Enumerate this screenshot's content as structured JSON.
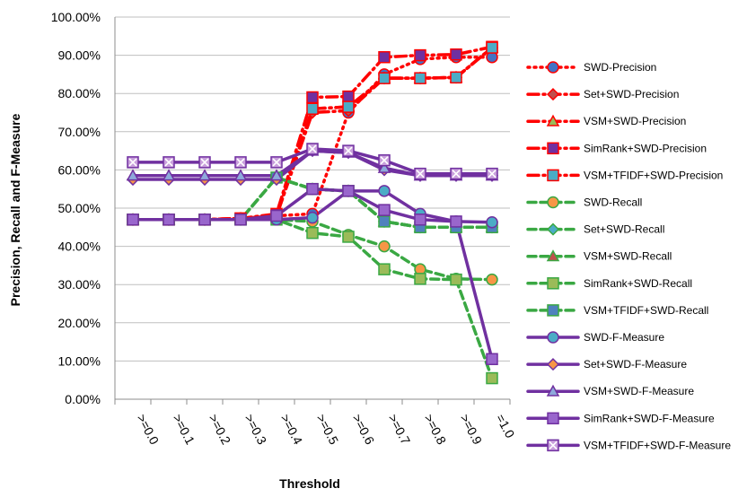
{
  "chart_data": {
    "type": "line",
    "title": "",
    "xlabel": "Threshold",
    "ylabel": "Precision, Recall and F-Measure",
    "categories": [
      ">=0.0",
      ">=0.1",
      ">=0.2",
      ">=0.3",
      ">=0.4",
      ">=0.5",
      ">=0.6",
      ">=0.7",
      ">=0.8",
      ">=0.9",
      "=1.0"
    ],
    "ylim": [
      0,
      100
    ],
    "yticks": [
      "0.00%",
      "10.00%",
      "20.00%",
      "30.00%",
      "40.00%",
      "50.00%",
      "60.00%",
      "70.00%",
      "80.00%",
      "90.00%",
      "100.00%"
    ],
    "grid": "horizontal",
    "legend_position": "right",
    "series": [
      {
        "name": "SWD-Precision",
        "color": "#ff0000",
        "dash": "dot",
        "marker": "circle",
        "marker_fill": "#4472c4",
        "values": [
          47,
          47,
          47,
          47.3,
          48,
          48.5,
          75,
          85,
          89,
          89.5,
          89.5
        ]
      },
      {
        "name": "Set+SWD-Precision",
        "color": "#ff0000",
        "dash": "dashdot",
        "marker": "diamond",
        "marker_fill": "#c0504d",
        "values": [
          47,
          47,
          47,
          47.3,
          48,
          75,
          75.5,
          84,
          84,
          84.2,
          92
        ]
      },
      {
        "name": "VSM+SWD-Precision",
        "color": "#ff0000",
        "dash": "dashdot",
        "marker": "triangle",
        "marker_fill": "#9bbb59",
        "values": [
          47,
          47,
          47,
          47.3,
          48,
          76,
          76.5,
          84,
          84,
          84.2,
          92
        ]
      },
      {
        "name": "SimRank+SWD-Precision",
        "color": "#ff0000",
        "dash": "dashdot",
        "marker": "square",
        "marker_fill": "#7030a0",
        "values": [
          47,
          47,
          47,
          47.3,
          48.5,
          79,
          79.2,
          89.5,
          90,
          90.2,
          92.2
        ]
      },
      {
        "name": "VSM+TFIDF+SWD-Precision",
        "color": "#ff0000",
        "dash": "dashdot",
        "marker": "square",
        "marker_fill": "#4bacc6",
        "values": [
          47,
          47,
          47,
          47.3,
          48,
          76,
          76.5,
          84,
          84,
          84.2,
          92
        ]
      },
      {
        "name": "SWD-Recall",
        "color": "#3aa843",
        "dash": "dash",
        "marker": "circle",
        "marker_fill": "#f79646",
        "values": [
          47,
          47,
          47,
          47,
          47,
          46.5,
          43,
          40,
          34,
          31.5,
          31.3
        ]
      },
      {
        "name": "Set+SWD-Recall",
        "color": "#3aa843",
        "dash": "dash",
        "marker": "diamond",
        "marker_fill": "#4bacc6",
        "values": [
          47,
          47,
          47,
          47,
          58,
          55,
          54.5,
          46.5,
          45,
          45,
          45
        ]
      },
      {
        "name": "VSM+SWD-Recall",
        "color": "#3aa843",
        "dash": "dash",
        "marker": "triangle",
        "marker_fill": "#c0504d",
        "values": [
          47,
          47,
          47,
          47,
          58,
          55,
          54.5,
          46.5,
          45,
          45,
          45
        ]
      },
      {
        "name": "SimRank+SWD-Recall",
        "color": "#3aa843",
        "dash": "dash",
        "marker": "square",
        "marker_fill": "#9bbb59",
        "values": [
          47,
          47,
          47,
          47,
          47,
          43.5,
          42.5,
          34,
          31.5,
          31.3,
          5.5
        ]
      },
      {
        "name": "VSM+TFIDF+SWD-Recall",
        "color": "#3aa843",
        "dash": "dash",
        "marker": "square",
        "marker_fill": "#4f81bd",
        "values": [
          47,
          47,
          47,
          47,
          58,
          55,
          54.5,
          46.5,
          45,
          45,
          45
        ]
      },
      {
        "name": "SWD-F-Measure",
        "color": "#7030a0",
        "dash": "solid",
        "marker": "circle",
        "marker_fill": "#4bacc6",
        "values": [
          47,
          47,
          47,
          47,
          47,
          47.5,
          54.5,
          54.5,
          48.5,
          46.5,
          46.3
        ]
      },
      {
        "name": "Set+SWD-F-Measure",
        "color": "#7030a0",
        "dash": "solid",
        "marker": "diamond",
        "marker_fill": "#f79646",
        "values": [
          57.5,
          57.5,
          57.5,
          57.5,
          57.5,
          65,
          64.5,
          60,
          58.5,
          58.5,
          58.5
        ]
      },
      {
        "name": "VSM+SWD-F-Measure",
        "color": "#7030a0",
        "dash": "solid",
        "marker": "triangle",
        "marker_fill": "#8ea9db",
        "values": [
          58.5,
          58.5,
          58.5,
          58.5,
          58.5,
          65,
          64.5,
          60.5,
          58.5,
          58.5,
          58.5
        ]
      },
      {
        "name": "SimRank+SWD-F-Measure",
        "color": "#7030a0",
        "dash": "solid",
        "marker": "square",
        "marker_fill": "#9966cc",
        "values": [
          47,
          47,
          47,
          47,
          48,
          55,
          54.5,
          49.5,
          47,
          46.5,
          10.5
        ]
      },
      {
        "name": "VSM+TFIDF+SWD-F-Measure",
        "color": "#7030a0",
        "dash": "solid",
        "marker": "star",
        "marker_fill": "#c9a0dc",
        "values": [
          62,
          62,
          62,
          62,
          62,
          65.5,
          65,
          62.5,
          59,
          59,
          59
        ]
      }
    ]
  }
}
